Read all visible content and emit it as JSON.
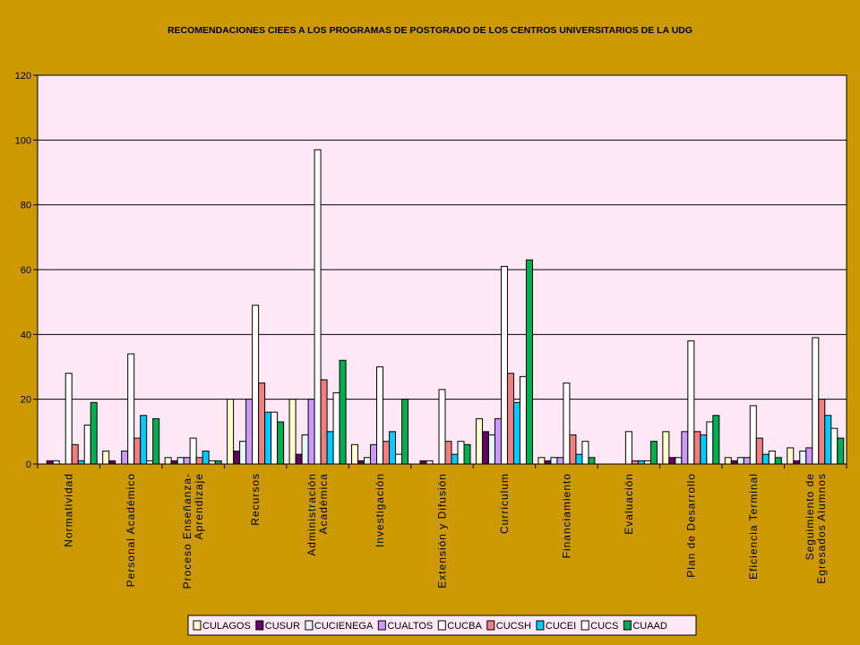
{
  "chart_data": {
    "type": "bar",
    "title": "RECOMENDACIONES CIEES A LOS PROGRAMAS DE POSTGRADO DE LOS CENTROS UNIVERSITARIOS DE LA UDG",
    "xlabel": "",
    "ylabel": "",
    "ylim": [
      0,
      120
    ],
    "yticks": [
      0,
      20,
      40,
      60,
      80,
      100,
      120
    ],
    "grid": true,
    "legend_position": "bottom",
    "plot_background": "#FFE8F5",
    "categories": [
      [
        "Normatividad"
      ],
      [
        "Personal Académico"
      ],
      [
        "Proceso Enseñanza-",
        "Aprendizaje"
      ],
      [
        "Recursos"
      ],
      [
        "Administración",
        "Académica"
      ],
      [
        "Investigación"
      ],
      [
        "Extensión y Difusión"
      ],
      [
        "Curriculum"
      ],
      [
        "Financiamiento"
      ],
      [
        "Evaluación"
      ],
      [
        "Plan de Desarrollo"
      ],
      [
        "Eficiencia Terminal"
      ],
      [
        "Seguimiento de",
        "Egresados Alumnos"
      ]
    ],
    "series": [
      {
        "name": "CULAGOS",
        "color": "#FFFFCC",
        "values": [
          0,
          4,
          2,
          20,
          20,
          6,
          0,
          14,
          2,
          0,
          10,
          2,
          5
        ]
      },
      {
        "name": "CUSUR",
        "color": "#660066",
        "values": [
          1,
          1,
          1,
          4,
          3,
          1,
          1,
          10,
          1,
          0,
          2,
          1,
          1
        ]
      },
      {
        "name": "CUCIENEGA",
        "color": "#E6F7F7",
        "values": [
          1,
          0,
          2,
          7,
          9,
          2,
          1,
          9,
          2,
          0,
          2,
          2,
          4
        ]
      },
      {
        "name": "CUALTOS",
        "color": "#CC99FF",
        "values": [
          0,
          4,
          2,
          20,
          20,
          6,
          0,
          14,
          2,
          0,
          10,
          2,
          5
        ]
      },
      {
        "name": "CUCBA",
        "color": "#FFFFFF",
        "values": [
          28,
          34,
          8,
          49,
          97,
          30,
          23,
          61,
          25,
          10,
          38,
          18,
          39
        ]
      },
      {
        "name": "CUCSH",
        "color": "#F08080",
        "values": [
          6,
          8,
          2,
          25,
          26,
          7,
          7,
          28,
          9,
          1,
          10,
          8,
          20
        ]
      },
      {
        "name": "CUCEI",
        "color": "#00CCFF",
        "values": [
          1,
          15,
          4,
          16,
          10,
          10,
          3,
          19,
          3,
          1,
          9,
          3,
          15
        ]
      },
      {
        "name": "CUCS",
        "color": "#FFFFFF",
        "values": [
          12,
          1,
          1,
          16,
          22,
          3,
          7,
          27,
          7,
          1,
          13,
          4,
          11
        ]
      },
      {
        "name": "CUAAD",
        "color": "#00B050",
        "values": [
          19,
          14,
          1,
          13,
          32,
          20,
          6,
          63,
          2,
          7,
          15,
          2,
          8
        ]
      }
    ]
  }
}
